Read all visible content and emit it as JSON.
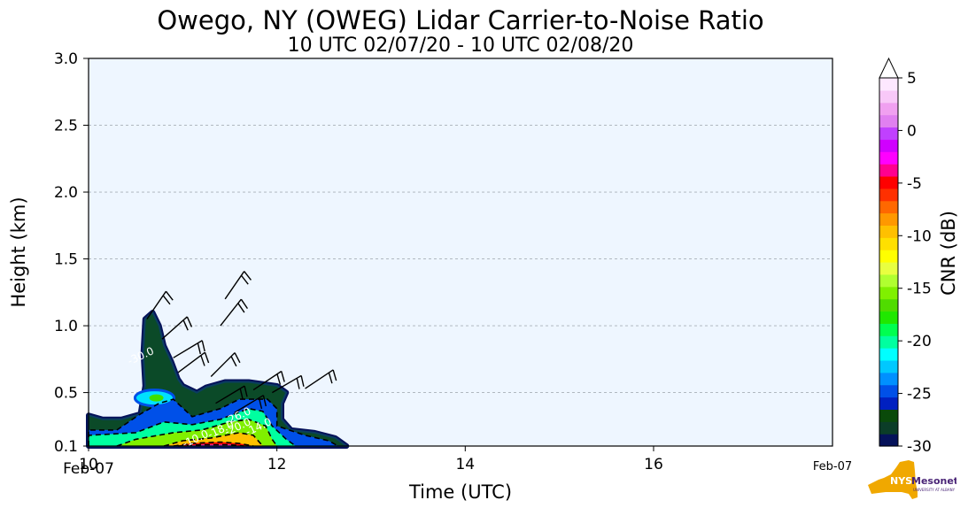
{
  "chart_data": {
    "type": "heatmap",
    "title": "Owego, NY (OWEG) Lidar Carrier-to-Noise Ratio",
    "subtitle": "10 UTC 02/07/20 - 10 UTC 02/08/20",
    "xlabel": "Time (UTC)",
    "ylabel": "Height (km)",
    "xlim": [
      10,
      17.9
    ],
    "ylim": [
      0.1,
      3.0
    ],
    "x_ticks": [
      10,
      12,
      14,
      16
    ],
    "x_tick_labels": [
      "10",
      "12",
      "14",
      "16"
    ],
    "x_date_labels": [
      {
        "x": 10,
        "label": "Feb-07"
      },
      {
        "x": 17.9,
        "label": "Feb-07"
      }
    ],
    "y_ticks": [
      0.1,
      0.5,
      1.0,
      1.5,
      2.0,
      2.5,
      3.0
    ],
    "y_tick_labels": [
      "0.1",
      "0.5",
      "1.0",
      "1.5",
      "2.0",
      "2.5",
      "3.0"
    ],
    "grid": "horizontal dashed",
    "colorbar": {
      "label": "CNR (dB)",
      "range": [
        -30,
        5
      ],
      "ticks": [
        5,
        0,
        -5,
        -10,
        -15,
        -20,
        -25,
        -30
      ],
      "tick_labels": [
        "5",
        "0",
        "-5",
        "-10",
        "-15",
        "-20",
        "-25",
        "-30"
      ],
      "extend": "max",
      "colors": [
        "#05125a",
        "#0b3d28",
        "#0a4a0a",
        "#0020c0",
        "#0050e8",
        "#0090ff",
        "#00c8ff",
        "#00ffff",
        "#00ffa0",
        "#00ff50",
        "#20e800",
        "#50dc00",
        "#80f000",
        "#b0ff30",
        "#e8ff40",
        "#ffff00",
        "#ffe000",
        "#ffc000",
        "#ff9800",
        "#ff6800",
        "#ff3000",
        "#ff0000",
        "#ff0090",
        "#ff00ff",
        "#d000ff",
        "#c040ff",
        "#e080f0",
        "#f0a0f0",
        "#f8c8f8",
        "#fde8ff"
      ]
    },
    "cnr_regions": [
      {
        "level": "-30",
        "points": [
          [
            10,
            0.1
          ],
          [
            10,
            0.33
          ],
          [
            10.15,
            0.3
          ],
          [
            10.35,
            0.3
          ],
          [
            10.55,
            0.34
          ],
          [
            10.6,
            0.55
          ],
          [
            10.58,
            0.8
          ],
          [
            10.6,
            1.05
          ],
          [
            10.68,
            1.1
          ],
          [
            10.75,
            1.0
          ],
          [
            10.8,
            0.85
          ],
          [
            10.88,
            0.73
          ],
          [
            10.95,
            0.6
          ],
          [
            11.0,
            0.55
          ],
          [
            11.15,
            0.5
          ],
          [
            11.25,
            0.54
          ],
          [
            11.45,
            0.58
          ],
          [
            11.7,
            0.58
          ],
          [
            12.0,
            0.55
          ],
          [
            12.1,
            0.5
          ],
          [
            12.05,
            0.42
          ],
          [
            12.05,
            0.3
          ],
          [
            12.15,
            0.22
          ],
          [
            12.4,
            0.2
          ],
          [
            12.62,
            0.16
          ],
          [
            12.74,
            0.1
          ]
        ]
      },
      {
        "level": "-25",
        "points": [
          [
            10,
            0.1
          ],
          [
            10,
            0.22
          ],
          [
            10.3,
            0.22
          ],
          [
            10.55,
            0.34
          ],
          [
            10.75,
            0.42
          ],
          [
            10.9,
            0.45
          ],
          [
            11.1,
            0.32
          ],
          [
            11.4,
            0.38
          ],
          [
            11.6,
            0.45
          ],
          [
            11.9,
            0.45
          ],
          [
            12.0,
            0.38
          ],
          [
            12.0,
            0.25
          ],
          [
            12.3,
            0.18
          ],
          [
            12.55,
            0.14
          ],
          [
            12.65,
            0.1
          ]
        ]
      },
      {
        "level": "-20",
        "points": [
          [
            10,
            0.1
          ],
          [
            10,
            0.18
          ],
          [
            10.5,
            0.2
          ],
          [
            10.8,
            0.28
          ],
          [
            11.1,
            0.26
          ],
          [
            11.4,
            0.3
          ],
          [
            11.7,
            0.38
          ],
          [
            11.85,
            0.36
          ],
          [
            11.95,
            0.25
          ],
          [
            12.1,
            0.15
          ],
          [
            12.2,
            0.1
          ]
        ]
      },
      {
        "level": "-15",
        "points": [
          [
            10.3,
            0.1
          ],
          [
            10.5,
            0.15
          ],
          [
            10.9,
            0.2
          ],
          [
            11.2,
            0.22
          ],
          [
            11.5,
            0.28
          ],
          [
            11.7,
            0.3
          ],
          [
            11.88,
            0.25
          ],
          [
            11.95,
            0.15
          ],
          [
            12.0,
            0.1
          ]
        ]
      },
      {
        "level": "-10",
        "points": [
          [
            10.8,
            0.1
          ],
          [
            11.0,
            0.14
          ],
          [
            11.3,
            0.16
          ],
          [
            11.6,
            0.2
          ],
          [
            11.75,
            0.18
          ],
          [
            11.85,
            0.1
          ]
        ]
      },
      {
        "level": "-5",
        "points": [
          [
            10.9,
            0.1
          ],
          [
            11.1,
            0.12
          ],
          [
            11.4,
            0.13
          ],
          [
            11.6,
            0.12
          ],
          [
            11.75,
            0.1
          ]
        ]
      },
      {
        "level": "0",
        "points": [
          [
            10.95,
            0.1
          ],
          [
            11.2,
            0.11
          ],
          [
            11.5,
            0.11
          ],
          [
            11.65,
            0.1
          ]
        ]
      }
    ],
    "contour_labels": [
      {
        "text": "-26.0",
        "x": 11.6,
        "y": 0.3
      },
      {
        "text": "-18.0",
        "x": 11.42,
        "y": 0.2
      },
      {
        "text": "-20.0",
        "x": 11.6,
        "y": 0.22
      },
      {
        "text": "-14.0",
        "x": 11.82,
        "y": 0.22
      },
      {
        "text": "-10.0",
        "x": 11.15,
        "y": 0.13
      },
      {
        "text": "-30.0",
        "x": 10.57,
        "y": 0.75
      }
    ],
    "wind_barbs": [
      {
        "x": 10.62,
        "y": 1.05,
        "u": 0.55,
        "v": 0.8
      },
      {
        "x": 10.78,
        "y": 0.9,
        "u": 0.45,
        "v": 0.4
      },
      {
        "x": 10.9,
        "y": 0.76,
        "u": 0.5,
        "v": 0.3
      },
      {
        "x": 10.95,
        "y": 0.65,
        "u": 0.4,
        "v": 0.3
      },
      {
        "x": 11.45,
        "y": 1.2,
        "u": 0.55,
        "v": 0.8
      },
      {
        "x": 11.4,
        "y": 1.0,
        "u": 0.55,
        "v": 0.7
      },
      {
        "x": 11.3,
        "y": 0.62,
        "u": 0.6,
        "v": 0.6
      },
      {
        "x": 11.75,
        "y": 0.52,
        "u": 0.6,
        "v": 0.4
      },
      {
        "x": 11.95,
        "y": 0.5,
        "u": 0.6,
        "v": 0.35
      },
      {
        "x": 12.3,
        "y": 0.53,
        "u": 0.6,
        "v": 0.4
      },
      {
        "x": 11.35,
        "y": 0.42,
        "u": 0.5,
        "v": 0.3
      },
      {
        "x": 11.55,
        "y": 0.35,
        "u": 0.5,
        "v": 0.3
      }
    ]
  },
  "logo": {
    "text1": "NYS",
    "text2": "Mesonet",
    "text3": "UNIVERSITY AT ALBANY",
    "brand_color": "#f0a800",
    "text_color": "#4a2577"
  }
}
